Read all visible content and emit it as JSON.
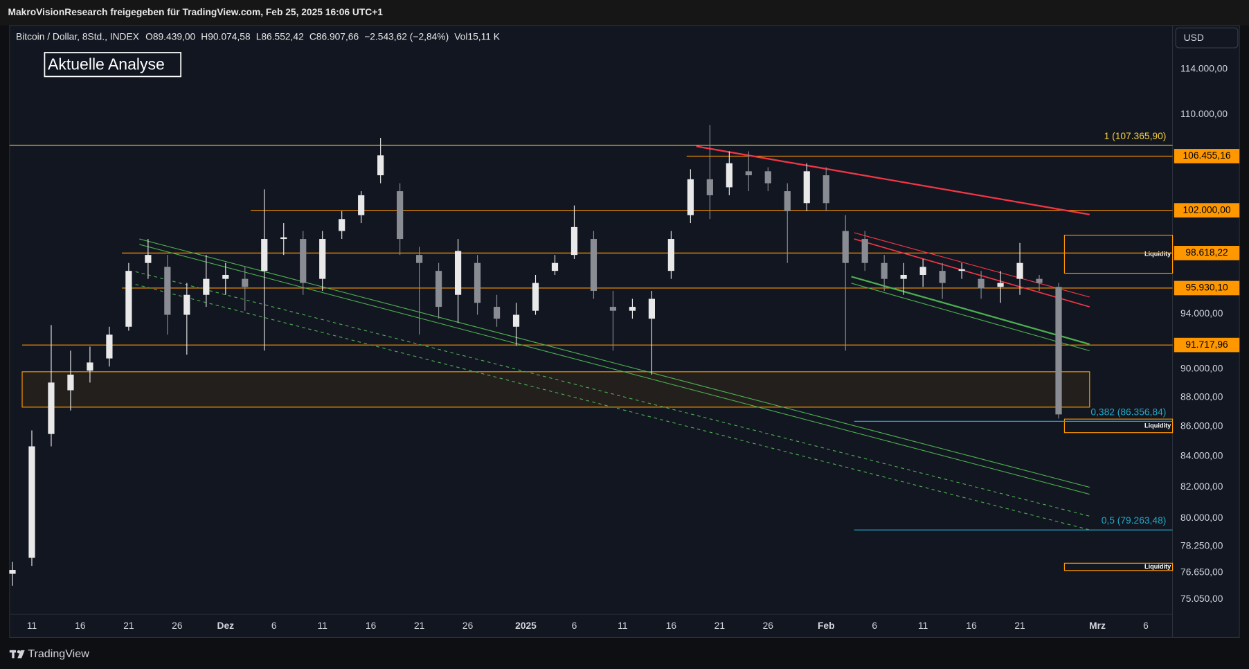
{
  "header": {
    "share_line": "MakroVisionResearch freigegeben für TradingView.com, Feb 25, 2025 16:06 UTC+1",
    "legend": [
      "Bitcoin / Dollar, 8Std., INDEX",
      "O89.439,00",
      "H90.074,58",
      "L86.552,42",
      "C86.907,66",
      "−2.543,62 (−2,84%)",
      "Vol15,11 K"
    ],
    "currency": "USD"
  },
  "footer": {
    "brand": "TradingView"
  },
  "chart_data": {
    "type": "candlestick",
    "title": "Aktuelle Analyse",
    "log_scale": true,
    "grid": false,
    "up_color": "#e9e9ea",
    "down_color": "#8a8c93",
    "xlim": [
      7.7,
      127.76
    ],
    "ylim": [
      74160,
      118010
    ],
    "xticks": [
      {
        "value": 10,
        "label": "11"
      },
      {
        "value": 15,
        "label": "16"
      },
      {
        "value": 20,
        "label": "21"
      },
      {
        "value": 25,
        "label": "26"
      },
      {
        "value": 30,
        "label": "Dez"
      },
      {
        "value": 35,
        "label": "6"
      },
      {
        "value": 40,
        "label": "11"
      },
      {
        "value": 45,
        "label": "16"
      },
      {
        "value": 50,
        "label": "21"
      },
      {
        "value": 55,
        "label": "26"
      },
      {
        "value": 61,
        "label": "2025"
      },
      {
        "value": 66,
        "label": "6"
      },
      {
        "value": 71,
        "label": "11"
      },
      {
        "value": 76,
        "label": "16"
      },
      {
        "value": 81,
        "label": "21"
      },
      {
        "value": 86,
        "label": "26"
      },
      {
        "value": 92,
        "label": "Feb"
      },
      {
        "value": 97,
        "label": "6"
      },
      {
        "value": 102,
        "label": "11"
      },
      {
        "value": 107,
        "label": "16"
      },
      {
        "value": 112,
        "label": "21"
      },
      {
        "value": 120,
        "label": "Mrz"
      },
      {
        "value": 125,
        "label": "6"
      }
    ],
    "yticks": [
      {
        "value": 114000,
        "label": "114.000,00"
      },
      {
        "value": 110000,
        "label": "110.000,00"
      },
      {
        "value": 94000,
        "label": "94.000,00"
      },
      {
        "value": 90000,
        "label": "90.000,00"
      },
      {
        "value": 88000,
        "label": "88.000,00"
      },
      {
        "value": 86000,
        "label": "86.000,00"
      },
      {
        "value": 84000,
        "label": "84.000,00"
      },
      {
        "value": 82000,
        "label": "82.000,00"
      },
      {
        "value": 80000,
        "label": "80.000,00"
      },
      {
        "value": 78250,
        "label": "78.250,00"
      },
      {
        "value": 76650,
        "label": "76.650,00"
      },
      {
        "value": 75050,
        "label": "75.050,00"
      }
    ],
    "candles": {
      "x": [
        8,
        10,
        12,
        14,
        16,
        18,
        20,
        22,
        24,
        26,
        28,
        30,
        32,
        34,
        36,
        38,
        40,
        42,
        44,
        46,
        48,
        50,
        52,
        54,
        56,
        58,
        60,
        62,
        64,
        66,
        68,
        70,
        72,
        74,
        76,
        78,
        80,
        82,
        84,
        86,
        88,
        90,
        92,
        94,
        96,
        98,
        100,
        102,
        104,
        106,
        108,
        110,
        112,
        114,
        116
      ],
      "ohlc": [
        [
          76570,
          77300,
          75850,
          76800
        ],
        [
          77540,
          85740,
          77050,
          84670
        ],
        [
          85500,
          93170,
          84670,
          89040
        ],
        [
          88500,
          91310,
          87100,
          89600
        ],
        [
          89880,
          91600,
          89040,
          90460
        ],
        [
          90750,
          93050,
          90170,
          92470
        ],
        [
          93050,
          97850,
          92760,
          97240
        ],
        [
          97850,
          99720,
          96630,
          98470
        ],
        [
          97550,
          98470,
          92470,
          93930
        ],
        [
          93930,
          96320,
          91020,
          95420
        ],
        [
          95420,
          98470,
          94520,
          96630
        ],
        [
          96630,
          97850,
          95420,
          96930
        ],
        [
          96630,
          97550,
          94230,
          96020
        ],
        [
          97240,
          103700,
          91310,
          99720
        ],
        [
          99720,
          100980,
          98470,
          99850
        ],
        [
          99720,
          100350,
          95420,
          96320
        ],
        [
          96630,
          100350,
          95720,
          99720
        ],
        [
          100350,
          101930,
          99720,
          101300
        ],
        [
          101610,
          103550,
          100980,
          103220
        ],
        [
          104860,
          108000,
          104200,
          106520
        ],
        [
          103550,
          104200,
          98470,
          99720
        ],
        [
          98470,
          99100,
          92470,
          97850
        ],
        [
          97240,
          97850,
          93640,
          94520
        ],
        [
          95420,
          99720,
          93340,
          98780
        ],
        [
          97850,
          98470,
          93930,
          94820
        ],
        [
          94520,
          95420,
          93050,
          93640
        ],
        [
          93050,
          94820,
          91660,
          93930
        ],
        [
          94230,
          96930,
          93930,
          96320
        ],
        [
          97240,
          98470,
          96930,
          97850
        ],
        [
          98470,
          102390,
          98160,
          100660
        ],
        [
          99720,
          100350,
          95120,
          95720
        ],
        [
          94520,
          95720,
          91310,
          94230
        ],
        [
          94230,
          95120,
          93640,
          94520
        ],
        [
          93640,
          95720,
          89600,
          95120
        ],
        [
          97240,
          100350,
          96630,
          99720
        ],
        [
          101610,
          105360,
          100980,
          104530
        ],
        [
          104530,
          109090,
          101300,
          103220
        ],
        [
          103870,
          106860,
          103220,
          105860
        ],
        [
          105190,
          106860,
          103550,
          104860
        ],
        [
          105190,
          105520,
          103550,
          104200
        ],
        [
          103550,
          104200,
          97850,
          101930
        ],
        [
          102580,
          105860,
          101930,
          105190
        ],
        [
          104860,
          105520,
          101930,
          102580
        ],
        [
          100350,
          101610,
          91310,
          97850
        ],
        [
          99720,
          100350,
          97240,
          97850
        ],
        [
          97850,
          98470,
          95720,
          96630
        ],
        [
          96630,
          97850,
          95420,
          96930
        ],
        [
          96930,
          98160,
          96020,
          97550
        ],
        [
          97240,
          97850,
          95120,
          96320
        ],
        [
          97240,
          97850,
          96630,
          97370
        ],
        [
          96630,
          97240,
          95120,
          95900
        ],
        [
          96020,
          97240,
          94820,
          96320
        ],
        [
          96630,
          99410,
          95420,
          97850
        ],
        [
          96630,
          96930,
          95720,
          96320
        ],
        [
          96020,
          96320,
          86550,
          86830
        ]
      ]
    },
    "level_color": "#ff9800",
    "levels": [
      {
        "value": 106455.16,
        "label": "106.455,16",
        "x_start": 77.6
      },
      {
        "value": 102000,
        "label": "102.000,00",
        "x_start": 32.6
      },
      {
        "value": 98618.22,
        "label": "98.618,22",
        "x_start": 19.3
      },
      {
        "value": 95930.1,
        "label": "95.930,10",
        "x_start": 19.3
      },
      {
        "value": 91717.96,
        "label": "91.717,96",
        "x_start": 9.0
      }
    ],
    "fib_levels": [
      {
        "value": 107365.9,
        "label": "1 (107.365,90)",
        "x_start": 7.7,
        "color": "#f5d142"
      },
      {
        "value": 86356.84,
        "label": "0,382 (86.356,84)",
        "x_start": 94.9,
        "color": "#22a7c6"
      },
      {
        "value": 79263.48,
        "label": "0,5 (79.263,48)",
        "x_start": 94.9,
        "color": "#22a7c6"
      }
    ],
    "zones": [
      {
        "x": [
          9.0,
          119.2
        ],
        "range": [
          87330,
          89800
        ],
        "color": "#ff9800"
      },
      {
        "x": [
          116.6,
          127.76
        ],
        "range": [
          97060,
          100020
        ],
        "color": "#ff9800",
        "label": "Liquidity"
      },
      {
        "x": [
          116.6,
          127.76
        ],
        "range": [
          85590,
          86510
        ],
        "color": "#ff9800",
        "label": "Liquidity"
      },
      {
        "x": [
          116.6,
          127.76
        ],
        "range": [
          76770,
          77210
        ],
        "color": "#ff9800",
        "label": "Liquidity"
      }
    ],
    "trendlines": [
      {
        "points": [
          [
            78.6,
            107280
          ],
          [
            119.2,
            101660
          ]
        ],
        "color": "#f23645",
        "width": 2
      },
      {
        "points": [
          [
            94.9,
            100210
          ],
          [
            119.2,
            95250
          ]
        ],
        "color": "#f23645",
        "width": 1
      },
      {
        "points": [
          [
            94.9,
            99720
          ],
          [
            119.2,
            94520
          ]
        ],
        "color": "#f23645",
        "width": 1.5
      },
      {
        "points": [
          [
            21.1,
            99720
          ],
          [
            119.2,
            81980
          ]
        ],
        "color": "#4caf50",
        "width": 1
      },
      {
        "points": [
          [
            21.1,
            99290
          ],
          [
            119.2,
            81530
          ]
        ],
        "color": "#4caf50",
        "width": 1
      },
      {
        "points": [
          [
            20.7,
            97180
          ],
          [
            119.2,
            80130
          ]
        ],
        "color": "#4caf50",
        "width": 1,
        "dashed": true
      },
      {
        "points": [
          [
            20.7,
            96210
          ],
          [
            119.2,
            79270
          ]
        ],
        "color": "#4caf50",
        "width": 1,
        "dashed": true
      },
      {
        "points": [
          [
            94.6,
            96800
          ],
          [
            119.2,
            91770
          ]
        ],
        "color": "#4caf50",
        "width": 2
      },
      {
        "points": [
          [
            94.6,
            96300
          ],
          [
            119.2,
            91300
          ]
        ],
        "color": "#4caf50",
        "width": 1
      }
    ]
  }
}
